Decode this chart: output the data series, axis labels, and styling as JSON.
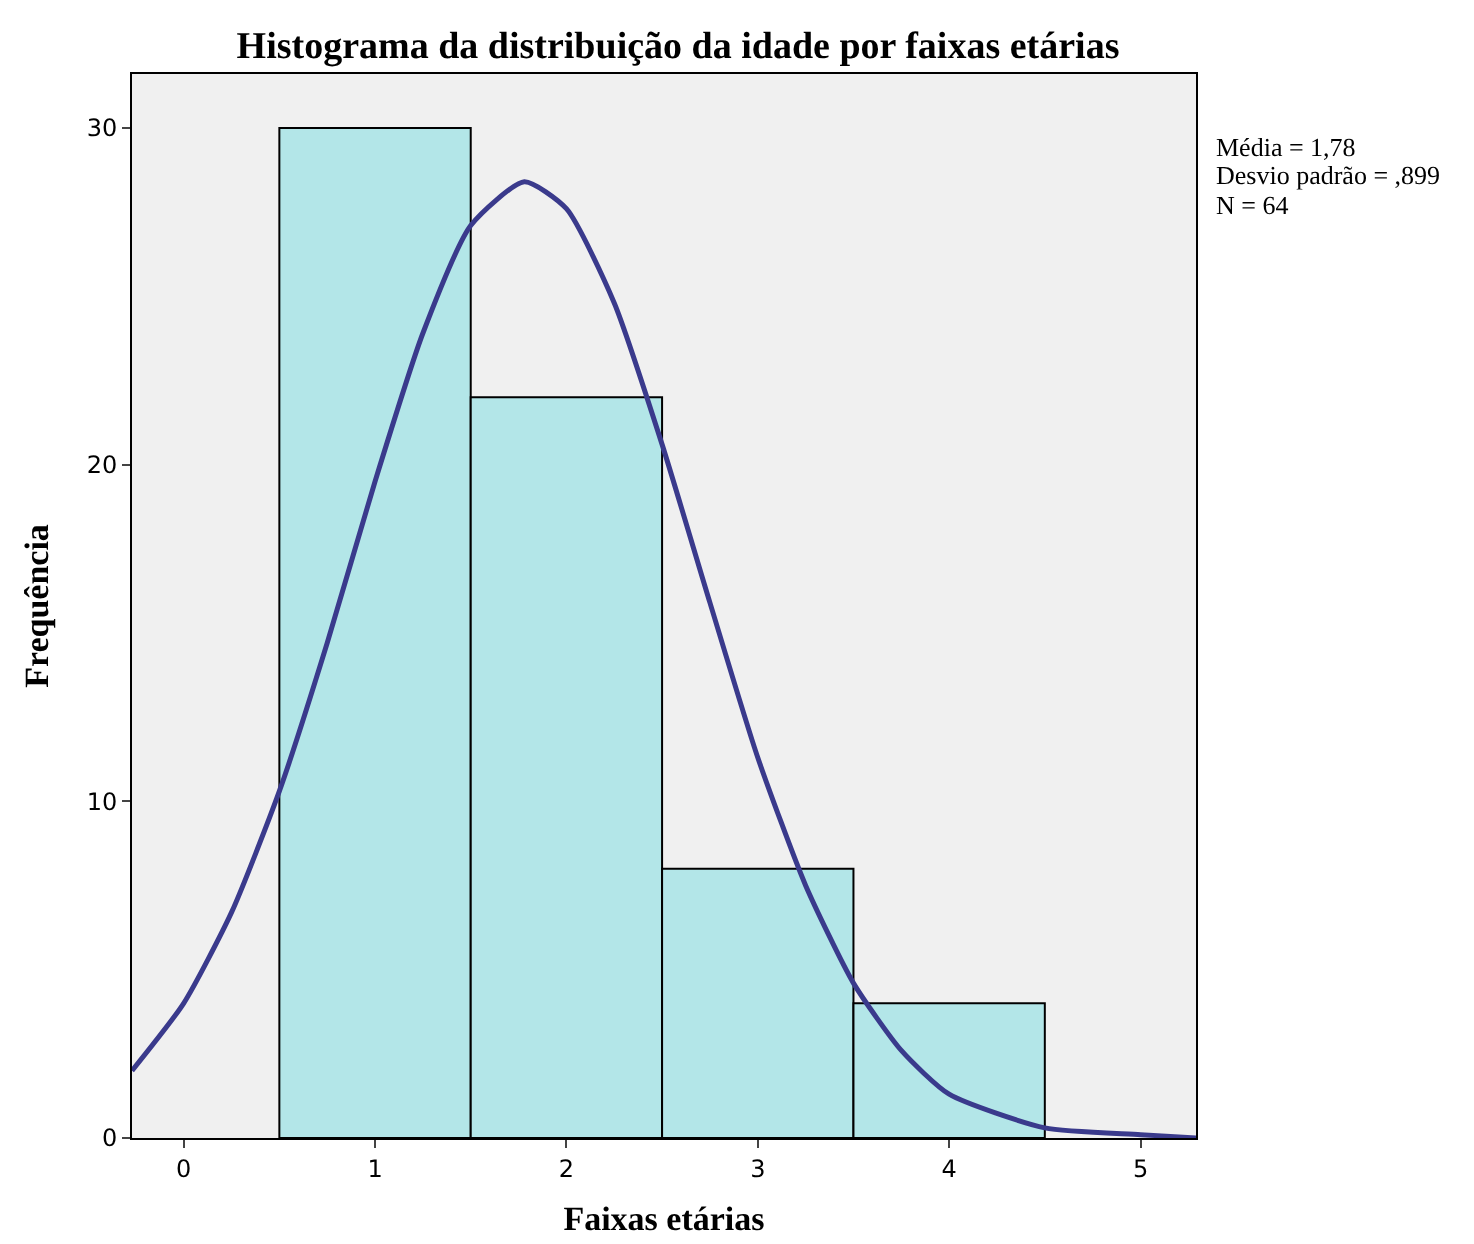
{
  "chart_data": {
    "type": "histogram",
    "title": "Histograma da distribuição da idade por faixas etárias",
    "xlabel": "Faixas etárias",
    "ylabel": "Frequência",
    "bins": [
      0.5,
      1.5,
      2.5,
      3.5,
      4.5
    ],
    "values": [
      30,
      22,
      8,
      4
    ],
    "color": "#b3e6e8",
    "series": [
      {
        "type": "line",
        "color": "#3a3a8c",
        "x": [
          -0.27,
          0,
          0.25,
          0.5,
          0.75,
          1,
          1.25,
          1.5,
          1.78,
          2,
          2.25,
          2.5,
          2.75,
          3,
          3.25,
          3.5,
          3.75,
          4,
          4.5,
          5,
          5.29
        ],
        "values": [
          2,
          4,
          6.7,
          10.3,
          14.7,
          19.5,
          23.9,
          27.1,
          28.4,
          27.6,
          24.8,
          20.6,
          15.9,
          11.3,
          7.5,
          4.6,
          2.6,
          1.3,
          0.3,
          0.1,
          0
        ]
      }
    ],
    "xlim": [
      -0.27,
      5.29
    ],
    "xticks": [
      0,
      1,
      2,
      3,
      4,
      5
    ],
    "ylim": [
      0,
      31.6
    ],
    "yticks": [
      0,
      10,
      20,
      30
    ],
    "grid": false,
    "annotations": [
      "Média = 1,78",
      "Desvio padrão = ,899",
      "N = 64"
    ]
  }
}
